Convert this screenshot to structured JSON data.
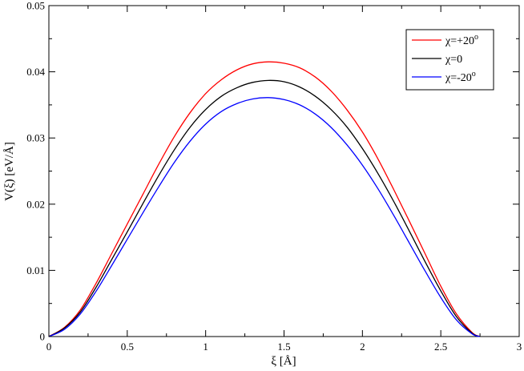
{
  "chart_data": {
    "type": "line",
    "xlabel": "ξ [Å]",
    "ylabel": "V(ξ) [eV/Å]",
    "xlim": [
      0,
      3
    ],
    "ylim": [
      0,
      0.05
    ],
    "x_ticks": [
      0,
      0.5,
      1,
      1.5,
      2,
      2.5,
      3
    ],
    "x_tick_labels": [
      "0",
      "0.5",
      "1",
      "1.5",
      "2",
      "2.5",
      "3"
    ],
    "y_ticks": [
      0,
      0.01,
      0.02,
      0.03,
      0.04,
      0.05
    ],
    "y_tick_labels": [
      "0",
      "0.01",
      "0.02",
      "0.03",
      "0.04",
      "0.05"
    ],
    "grid": false,
    "legend_position": "top-right",
    "series": [
      {
        "name": "χ=+20°",
        "legend_base": "χ=+20",
        "legend_sup": "o",
        "color": "#ff0000",
        "x": [
          0,
          0.1,
          0.2,
          0.3,
          0.4,
          0.5,
          0.6,
          0.7,
          0.8,
          0.9,
          1.0,
          1.1,
          1.2,
          1.3,
          1.4,
          1.5,
          1.6,
          1.7,
          1.8,
          1.9,
          2.0,
          2.1,
          2.2,
          2.3,
          2.4,
          2.5,
          2.6,
          2.7,
          2.75
        ],
        "y": [
          0,
          0.0014,
          0.004,
          0.008,
          0.0125,
          0.017,
          0.0215,
          0.026,
          0.0302,
          0.0338,
          0.0367,
          0.0388,
          0.0403,
          0.0412,
          0.0415,
          0.0413,
          0.0406,
          0.0392,
          0.0371,
          0.0343,
          0.0309,
          0.0268,
          0.0222,
          0.0174,
          0.0125,
          0.0076,
          0.0034,
          0.0006,
          0
        ]
      },
      {
        "name": "χ=0",
        "legend_base": "χ=0",
        "legend_sup": "",
        "color": "#000000",
        "x": [
          0,
          0.1,
          0.2,
          0.3,
          0.4,
          0.5,
          0.6,
          0.7,
          0.8,
          0.9,
          1.0,
          1.1,
          1.2,
          1.3,
          1.4,
          1.5,
          1.6,
          1.7,
          1.8,
          1.9,
          2.0,
          2.1,
          2.2,
          2.3,
          2.4,
          2.5,
          2.6,
          2.7,
          2.75
        ],
        "y": [
          0,
          0.0013,
          0.0037,
          0.0074,
          0.0116,
          0.0158,
          0.0201,
          0.0243,
          0.0282,
          0.0316,
          0.0343,
          0.0363,
          0.0376,
          0.0384,
          0.0387,
          0.0385,
          0.0377,
          0.0363,
          0.0343,
          0.0317,
          0.0284,
          0.0246,
          0.0204,
          0.0159,
          0.0113,
          0.0069,
          0.003,
          0.0005,
          0
        ]
      },
      {
        "name": "χ=-20°",
        "legend_base": "χ=-20",
        "legend_sup": "o",
        "color": "#0000ff",
        "x": [
          0,
          0.1,
          0.2,
          0.3,
          0.4,
          0.5,
          0.6,
          0.7,
          0.8,
          0.9,
          1.0,
          1.1,
          1.2,
          1.3,
          1.4,
          1.5,
          1.6,
          1.7,
          1.8,
          1.9,
          2.0,
          2.1,
          2.2,
          2.3,
          2.4,
          2.5,
          2.6,
          2.7,
          2.75
        ],
        "y": [
          0,
          0.0011,
          0.0034,
          0.0068,
          0.0107,
          0.0147,
          0.0187,
          0.0226,
          0.0263,
          0.0295,
          0.0321,
          0.034,
          0.0352,
          0.0359,
          0.0361,
          0.0358,
          0.035,
          0.0336,
          0.0316,
          0.029,
          0.0259,
          0.0223,
          0.0183,
          0.0141,
          0.0099,
          0.0059,
          0.0025,
          0.0004,
          0
        ]
      }
    ]
  }
}
